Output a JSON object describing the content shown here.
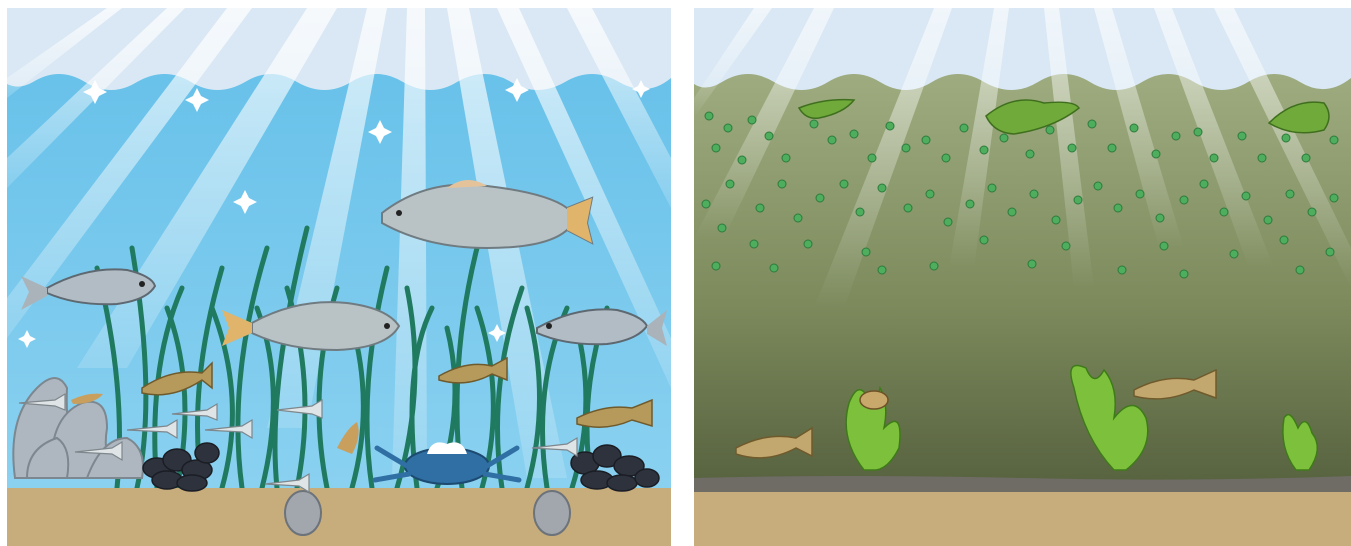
{
  "panels": [
    {
      "id": "clear-water",
      "water_colors": {
        "top": "#6cc4ea",
        "bottom": "#86cff0"
      },
      "sky_color": "#dbe9f5",
      "sediment_color": "#c8ad7c",
      "grass_color": "#1f7a5f",
      "organisms": [
        "speckled-trout-icon",
        "striped-bass-icon",
        "mummichog-icon",
        "silverside-icon",
        "blue-crab-icon",
        "oyster-cluster-icon",
        "mussel-cluster-icon",
        "clam-icon",
        "shrimp-icon",
        "eelgrass-icon"
      ]
    },
    {
      "id": "murky-water",
      "water_colors": {
        "top": "#a9b68c",
        "bottom": "#55603f"
      },
      "sky_color": "#dbe9f5",
      "sediment_color": "#c8ad7c",
      "mud_color": "#6f6c66",
      "algae_dot_color": "#4fae5e",
      "organisms": [
        "mummichog-icon",
        "snail-icon",
        "sea-lettuce-icon",
        "algae-bloom-icon"
      ]
    }
  ]
}
